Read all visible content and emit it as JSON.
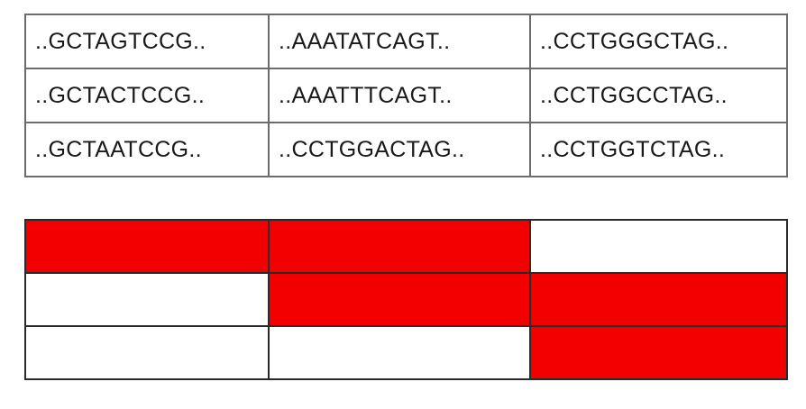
{
  "sequence_table": {
    "rows": [
      [
        "..GCTAGTCCG..",
        "..AAATATCAGT..",
        "..CCTGGGCTAG.."
      ],
      [
        "..GCTACTCCG..",
        "..AAATTTCAGT..",
        "..CCTGGCCTAG.."
      ],
      [
        "..GCTAATCCG..",
        "..CCTGGACTAG..",
        "..CCTGGTCTAG.."
      ]
    ]
  },
  "color_grid": {
    "filled_color": "#f20000",
    "empty_color": "#ffffff",
    "cells": [
      [
        true,
        true,
        false
      ],
      [
        false,
        true,
        true
      ],
      [
        false,
        false,
        true
      ]
    ]
  }
}
